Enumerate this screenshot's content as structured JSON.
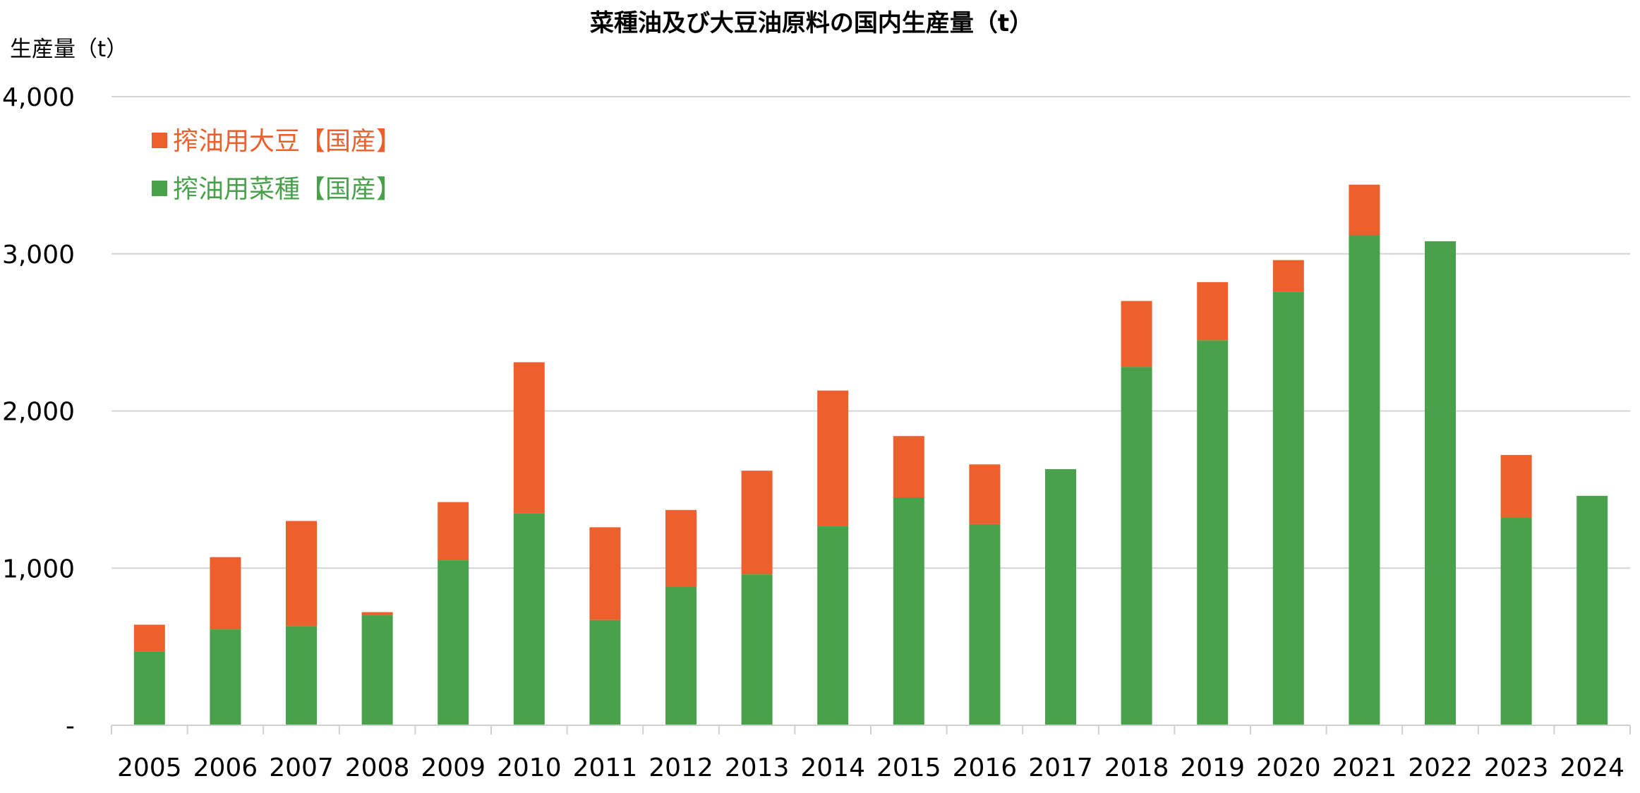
{
  "chart_data": {
    "type": "bar",
    "stacked": true,
    "title": "菜種油及び大豆油原料の国内生産量（t）",
    "ylabel": "生産量（t）",
    "xlabel": "",
    "ylim": [
      0,
      4000
    ],
    "yticks": [
      0,
      1000,
      2000,
      3000,
      4000
    ],
    "ytick_labels": [
      "-",
      "1,000",
      "2,000",
      "3,000",
      "4,000"
    ],
    "grid": true,
    "legend_position": "top-left",
    "categories": [
      "2005",
      "2006",
      "2007",
      "2008",
      "2009",
      "2010",
      "2011",
      "2012",
      "2013",
      "2014",
      "2015",
      "2016",
      "2017",
      "2018",
      "2019",
      "2020",
      "2021",
      "2022",
      "2023",
      "2024"
    ],
    "series": [
      {
        "name": "搾油用菜種【国産】",
        "color": "#4aa14c",
        "values": [
          470,
          610,
          630,
          700,
          1050,
          1350,
          670,
          880,
          960,
          1270,
          1450,
          1280,
          1630,
          2280,
          2450,
          2760,
          3120,
          3080,
          1320,
          1460
        ]
      },
      {
        "name": "搾油用大豆【国産】",
        "color": "#ec602d",
        "values": [
          170,
          460,
          670,
          20,
          370,
          960,
          590,
          490,
          660,
          860,
          390,
          380,
          0,
          420,
          370,
          200,
          320,
          0,
          400,
          0
        ]
      }
    ],
    "legend_order": [
      1,
      0
    ]
  }
}
